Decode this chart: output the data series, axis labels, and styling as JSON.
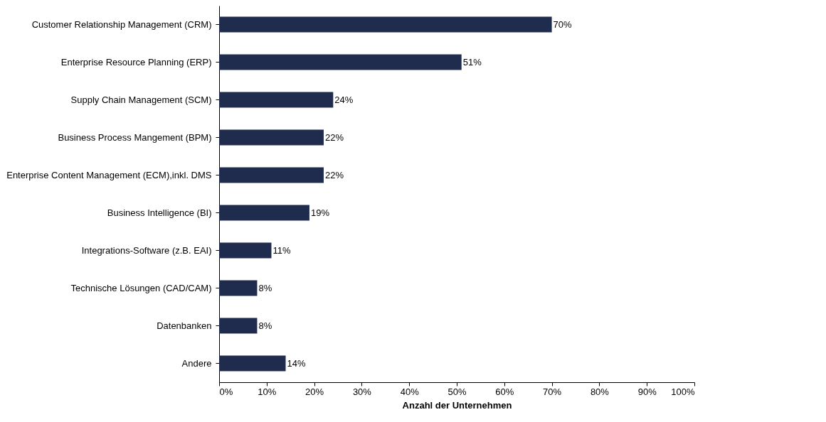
{
  "chart_data": {
    "type": "bar",
    "orientation": "horizontal",
    "xlabel": "Anzahl der Unternehmen",
    "categories": [
      "Customer Relationship Management (CRM)",
      "Enterprise Resource Planning (ERP)",
      "Supply Chain Management (SCM)",
      "Business Process Mangement (BPM)",
      "Enterprise Content Management (ECM),inkl. DMS",
      "Business Intelligence (BI)",
      "Integrations-Software (z.B. EAI)",
      "Technische Lösungen (CAD/CAM)",
      "Datenbanken",
      "Andere"
    ],
    "values": [
      70,
      51,
      24,
      22,
      22,
      19,
      11,
      8,
      8,
      14
    ],
    "value_labels": [
      "70%",
      "51%",
      "24%",
      "22%",
      "22%",
      "19%",
      "11%",
      "8%",
      "8%",
      "14%"
    ],
    "color": "#1f2c4e",
    "xlim": [
      0,
      100
    ],
    "xticks": [
      {
        "value": 0,
        "label": "0%"
      },
      {
        "value": 10,
        "label": "10%"
      },
      {
        "value": 20,
        "label": "20%"
      },
      {
        "value": 30,
        "label": "30%"
      },
      {
        "value": 40,
        "label": "40%"
      },
      {
        "value": 50,
        "label": "50%"
      },
      {
        "value": 60,
        "label": "60%"
      },
      {
        "value": 70,
        "label": "70%"
      },
      {
        "value": 80,
        "label": "80%"
      },
      {
        "value": 90,
        "label": "90%"
      },
      {
        "value": 100,
        "label": "100%"
      }
    ],
    "grid": false
  }
}
